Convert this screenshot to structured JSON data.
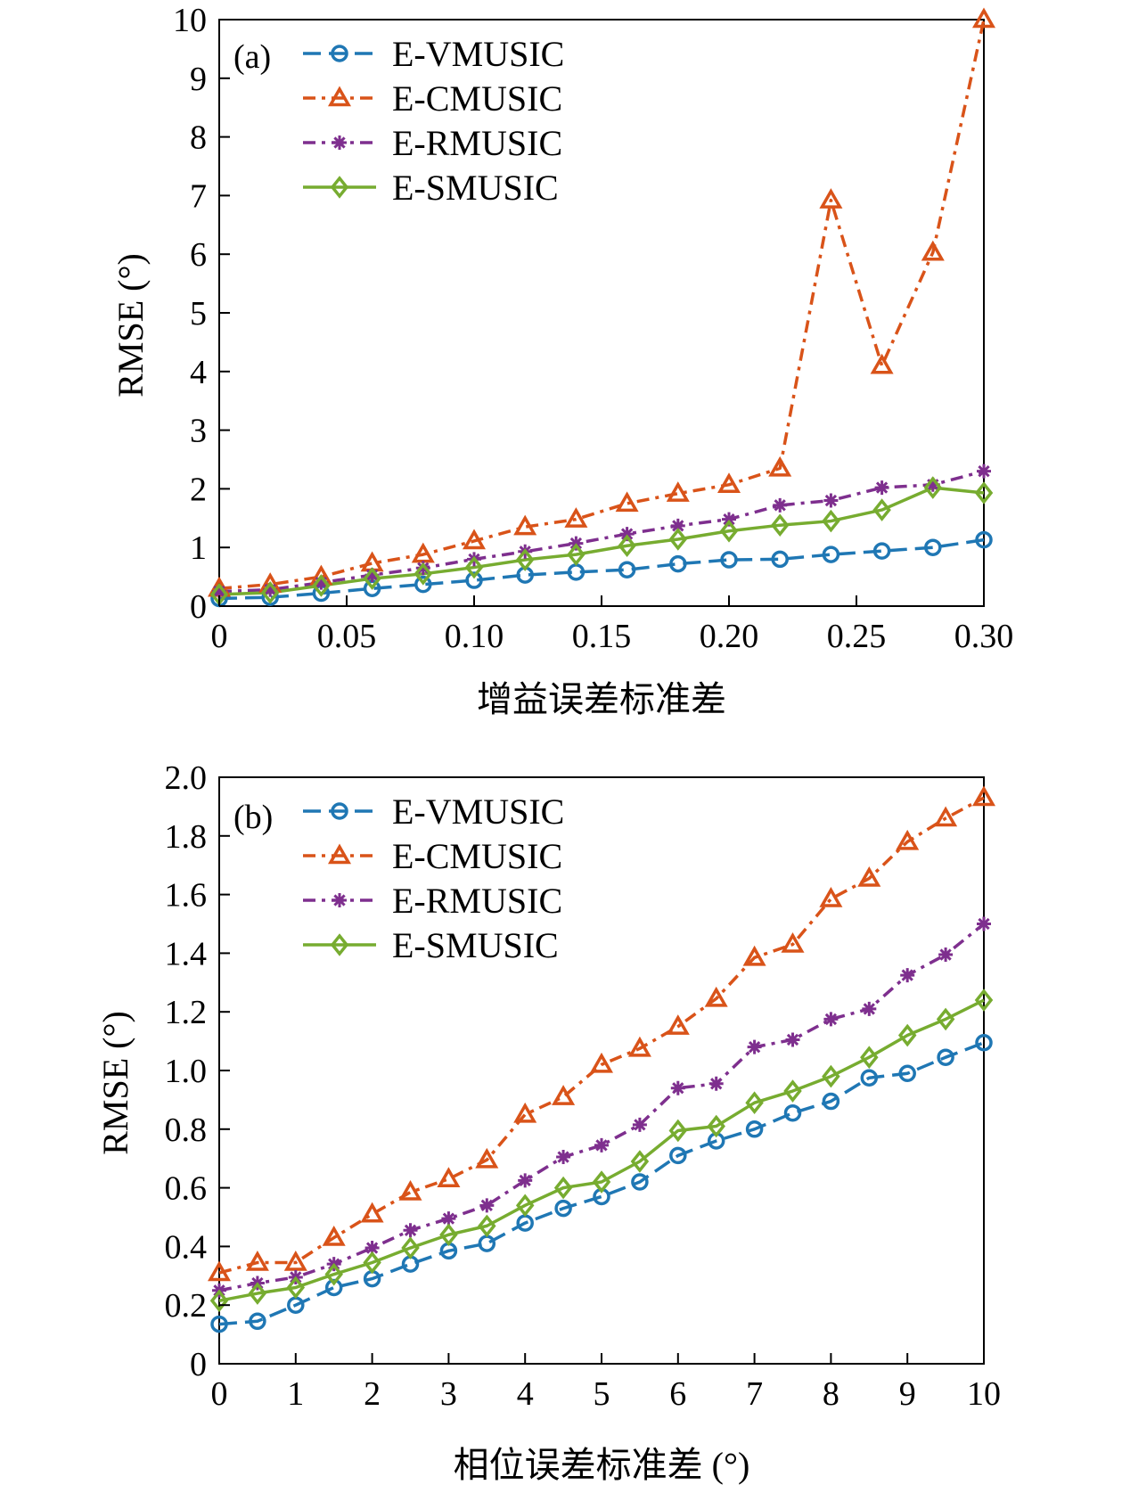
{
  "colors": {
    "E-VMUSIC": "#1f77b4",
    "E-CMUSIC": "#d95319",
    "E-RMUSIC": "#7e2f8e",
    "E-SMUSIC": "#77ac30"
  },
  "chart_data": [
    {
      "type": "line",
      "panel_label": "(a)",
      "xlabel": "增益误差标准差",
      "ylabel": "RMSE (°)",
      "xlim": [
        0,
        0.3
      ],
      "ylim": [
        0,
        10
      ],
      "xticks": [
        0,
        0.05,
        0.1,
        0.15,
        0.2,
        0.25,
        0.3
      ],
      "xtick_labels": [
        "0",
        "0.05",
        "0.10",
        "0.15",
        "0.20",
        "0.25",
        "0.30"
      ],
      "yticks": [
        0,
        1,
        2,
        3,
        4,
        5,
        6,
        7,
        8,
        9,
        10
      ],
      "ytick_labels": [
        "0",
        "1",
        "2",
        "3",
        "4",
        "5",
        "6",
        "7",
        "8",
        "9",
        "10"
      ],
      "legend_position": "top-left",
      "x": [
        0,
        0.02,
        0.04,
        0.06,
        0.08,
        0.1,
        0.12,
        0.14,
        0.16,
        0.18,
        0.2,
        0.22,
        0.24,
        0.26,
        0.28,
        0.3
      ],
      "series": [
        {
          "name": "E-VMUSIC",
          "marker": "circle",
          "dash": "dashed",
          "values": [
            0.13,
            0.15,
            0.22,
            0.3,
            0.37,
            0.44,
            0.53,
            0.58,
            0.62,
            0.72,
            0.79,
            0.8,
            0.88,
            0.94,
            1.0,
            1.13
          ]
        },
        {
          "name": "E-CMUSIC",
          "marker": "triangle",
          "dash": "dashdot",
          "values": [
            0.3,
            0.37,
            0.5,
            0.73,
            0.88,
            1.11,
            1.35,
            1.48,
            1.75,
            1.92,
            2.07,
            2.35,
            6.92,
            4.1,
            6.03,
            10.0
          ]
        },
        {
          "name": "E-RMUSIC",
          "marker": "star",
          "dash": "dashdot",
          "values": [
            0.25,
            0.28,
            0.4,
            0.53,
            0.65,
            0.8,
            0.93,
            1.07,
            1.23,
            1.37,
            1.48,
            1.72,
            1.8,
            2.02,
            2.07,
            2.3
          ]
        },
        {
          "name": "E-SMUSIC",
          "marker": "diamond",
          "dash": "solid",
          "values": [
            0.2,
            0.23,
            0.35,
            0.47,
            0.55,
            0.66,
            0.79,
            0.88,
            1.03,
            1.14,
            1.28,
            1.38,
            1.45,
            1.64,
            2.02,
            1.93
          ]
        }
      ]
    },
    {
      "type": "line",
      "panel_label": "(b)",
      "xlabel": "相位误差标准差 (°)",
      "ylabel": "RMSE (°)",
      "xlim": [
        0,
        10
      ],
      "ylim": [
        0,
        2.0
      ],
      "xticks": [
        0,
        1,
        2,
        3,
        4,
        5,
        6,
        7,
        8,
        9,
        10
      ],
      "xtick_labels": [
        "0",
        "1",
        "2",
        "3",
        "4",
        "5",
        "6",
        "7",
        "8",
        "9",
        "10"
      ],
      "yticks": [
        0,
        0.2,
        0.4,
        0.6,
        0.8,
        1.0,
        1.2,
        1.4,
        1.6,
        1.8,
        2.0
      ],
      "ytick_labels": [
        "0",
        "0.2",
        "0.4",
        "0.6",
        "0.8",
        "1.0",
        "1.2",
        "1.4",
        "1.6",
        "1.8",
        "2.0"
      ],
      "legend_position": "top-left",
      "x": [
        0,
        0.5,
        1,
        1.5,
        2,
        2.5,
        3,
        3.5,
        4,
        4.5,
        5,
        5.5,
        6,
        6.5,
        7,
        7.5,
        8,
        8.5,
        9,
        9.5,
        10
      ],
      "series": [
        {
          "name": "E-VMUSIC",
          "marker": "circle",
          "dash": "dashed",
          "values": [
            0.135,
            0.145,
            0.2,
            0.26,
            0.29,
            0.34,
            0.385,
            0.41,
            0.48,
            0.53,
            0.57,
            0.62,
            0.71,
            0.76,
            0.8,
            0.855,
            0.895,
            0.975,
            0.99,
            1.045,
            1.095
          ]
        },
        {
          "name": "E-CMUSIC",
          "marker": "triangle",
          "dash": "dashdot",
          "values": [
            0.31,
            0.345,
            0.345,
            0.43,
            0.51,
            0.585,
            0.63,
            0.695,
            0.85,
            0.91,
            1.02,
            1.075,
            1.15,
            1.245,
            1.385,
            1.43,
            1.585,
            1.655,
            1.78,
            1.86,
            1.93
          ]
        },
        {
          "name": "E-RMUSIC",
          "marker": "star",
          "dash": "dashdot",
          "values": [
            0.25,
            0.275,
            0.295,
            0.34,
            0.395,
            0.455,
            0.495,
            0.54,
            0.625,
            0.705,
            0.745,
            0.815,
            0.94,
            0.955,
            1.08,
            1.105,
            1.175,
            1.21,
            1.325,
            1.395,
            1.5
          ]
        },
        {
          "name": "E-SMUSIC",
          "marker": "diamond",
          "dash": "solid",
          "values": [
            0.215,
            0.24,
            0.26,
            0.305,
            0.345,
            0.395,
            0.44,
            0.47,
            0.54,
            0.6,
            0.62,
            0.69,
            0.795,
            0.81,
            0.89,
            0.93,
            0.98,
            1.045,
            1.12,
            1.175,
            1.24
          ]
        }
      ]
    }
  ]
}
